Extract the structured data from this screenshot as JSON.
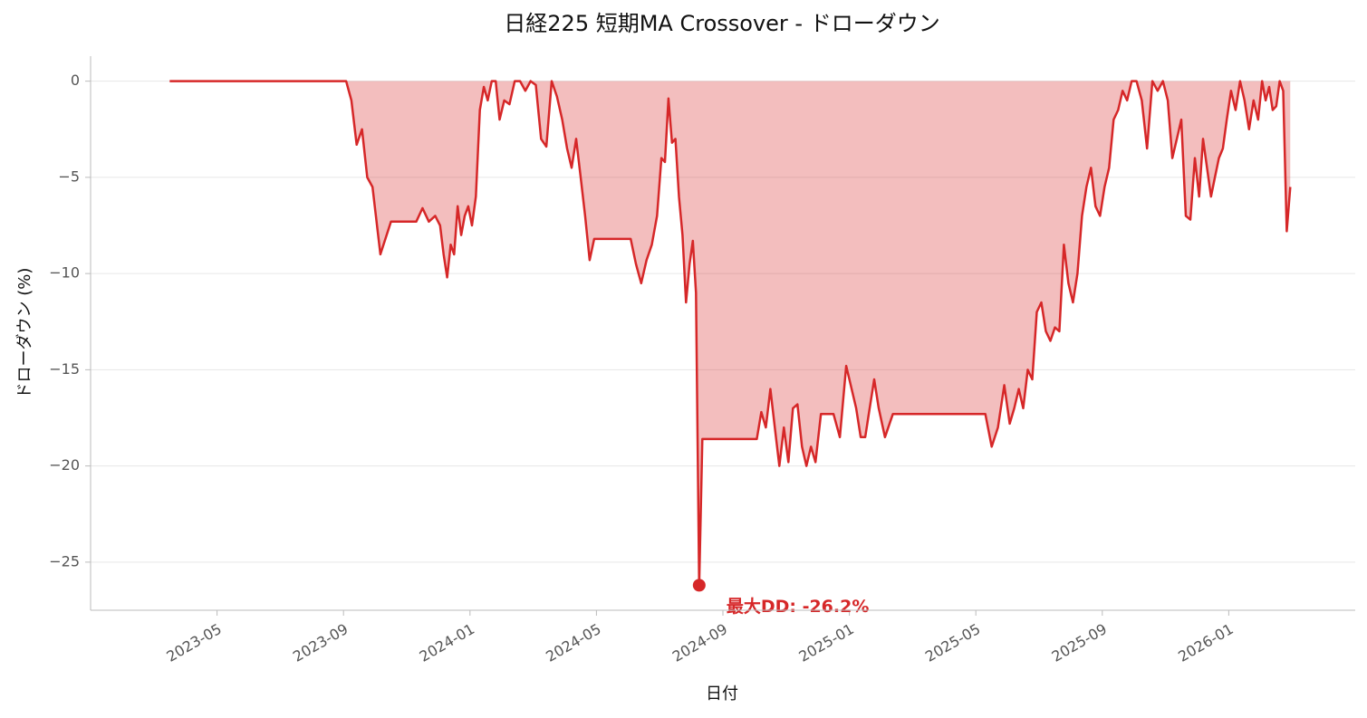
{
  "chart_data": {
    "type": "area-line",
    "title": "日経225 短期MA Crossover - ドローダウン",
    "xlabel": "日付",
    "ylabel": "ドローダウン (%)",
    "annotation": "最大DD: -26.2%",
    "color": "#d62728",
    "x": [
      "2023-03",
      "2023-04",
      "2023-05",
      "2023-06",
      "2023-07",
      "2023-08",
      "2023-09",
      "2023-09",
      "2023-09",
      "2023-09",
      "2023-09",
      "2023-09",
      "2023-10",
      "2023-10",
      "2023-10",
      "2023-11",
      "2023-11",
      "2023-11",
      "2023-11",
      "2023-11",
      "2023-12",
      "2023-12",
      "2023-12",
      "2023-12",
      "2023-12",
      "2023-12",
      "2023-12",
      "2023-12",
      "2023-12",
      "2024-01",
      "2024-01",
      "2024-01",
      "2024-01",
      "2024-01",
      "2024-01",
      "2024-01",
      "2024-01",
      "2024-02",
      "2024-02",
      "2024-02",
      "2024-02",
      "2024-02",
      "2024-02",
      "2024-03",
      "2024-03",
      "2024-03",
      "2024-03",
      "2024-03",
      "2024-03",
      "2024-04",
      "2024-04",
      "2024-04",
      "2024-04",
      "2024-04",
      "2024-04",
      "2024-04",
      "2024-05",
      "2024-05",
      "2024-06",
      "2024-06",
      "2024-06",
      "2024-06",
      "2024-06",
      "2024-06",
      "2024-07",
      "2024-07",
      "2024-07",
      "2024-07",
      "2024-07",
      "2024-07",
      "2024-07",
      "2024-07",
      "2024-07",
      "2024-08",
      "2024-08",
      "2024-08",
      "2024-08",
      "2024-08",
      "2024-08",
      "2024-08",
      "2024-08",
      "2024-08",
      "2024-08",
      "2024-09",
      "2024-09",
      "2024-09",
      "2024-10",
      "2024-10",
      "2024-10",
      "2024-10",
      "2024-10",
      "2024-10",
      "2024-10",
      "2024-11",
      "2024-11",
      "2024-11",
      "2024-11",
      "2024-11",
      "2024-11",
      "2024-11",
      "2024-12",
      "2024-12",
      "2024-12",
      "2024-12",
      "2024-12",
      "2025-01",
      "2025-01",
      "2025-01",
      "2025-01",
      "2025-01",
      "2025-01",
      "2025-01",
      "2025-02",
      "2025-02",
      "2025-02",
      "2025-02",
      "2025-03",
      "2025-03",
      "2025-04",
      "2025-04",
      "2025-05",
      "2025-05",
      "2025-05",
      "2025-05",
      "2025-05",
      "2025-06",
      "2025-06",
      "2025-06",
      "2025-06",
      "2025-06",
      "2025-06",
      "2025-06",
      "2025-07",
      "2025-07",
      "2025-07",
      "2025-07",
      "2025-07",
      "2025-07",
      "2025-07",
      "2025-08",
      "2025-08",
      "2025-08",
      "2025-08",
      "2025-08",
      "2025-08",
      "2025-08",
      "2025-09",
      "2025-09",
      "2025-09",
      "2025-09",
      "2025-09",
      "2025-09",
      "2025-09",
      "2025-10",
      "2025-10",
      "2025-10",
      "2025-10",
      "2025-10",
      "2025-10",
      "2025-11",
      "2025-11",
      "2025-11",
      "2025-11",
      "2025-11",
      "2025-11",
      "2025-11",
      "2025-12",
      "2025-12",
      "2025-12",
      "2025-12",
      "2025-12",
      "2025-12",
      "2025-12",
      "2025-12",
      "2026-01",
      "2026-01",
      "2026-01",
      "2026-01",
      "2026-01",
      "2026-01",
      "2026-01",
      "2026-02",
      "2026-02",
      "2026-02",
      "2026-02",
      "2026-02",
      "2026-02",
      "2026-02",
      "2026-02",
      "2026-02"
    ],
    "values": [
      0,
      0,
      0,
      0,
      0,
      0,
      0,
      -1,
      -3.3,
      -2.5,
      -5,
      -5.5,
      -9,
      -7.3,
      -7.3,
      -7.3,
      -7.3,
      -6.6,
      -7.3,
      -7.0,
      -7.5,
      -9,
      -10.2,
      -8.5,
      -9,
      -6.5,
      -8,
      -7,
      -6.5,
      -7.5,
      -6,
      -1.5,
      -0.3,
      -1,
      0,
      0,
      -2,
      -1,
      -1.2,
      0,
      0,
      -0.5,
      0,
      -0.2,
      -3,
      -3.4,
      0,
      -0.8,
      -2,
      -3.5,
      -4.5,
      -3,
      -5,
      -7,
      -9.3,
      -8.2,
      -8.2,
      -8.2,
      -8.2,
      -9.5,
      -10.5,
      -9.3,
      -8.5,
      -7,
      -4,
      -4.2,
      -0.9,
      -3.2,
      -3,
      -6,
      -8,
      -11.5,
      -9.5,
      -8.3,
      -11,
      -26.2,
      -18.6,
      -18.6,
      -18.6,
      -18.6,
      -18.6,
      -18.6,
      -18.6,
      -18.6,
      -18.6,
      -18.6,
      -18.6,
      -17.2,
      -18,
      -16,
      -18,
      -20,
      -18,
      -19.8,
      -17,
      -16.8,
      -19,
      -20,
      -19,
      -19.8,
      -17.3,
      -17.3,
      -17.3,
      -18.5,
      -14.8,
      -16,
      -17,
      -18.5,
      -18.5,
      -17,
      -15.5,
      -17,
      -18.5,
      -17.3,
      -17.3,
      -17.3,
      -17.3,
      -17.3,
      -17.3,
      -17.3,
      -17.3,
      -17.3,
      -19,
      -18,
      -15.8,
      -17.8,
      -17,
      -16,
      -17,
      -15,
      -15.5,
      -12,
      -11.5,
      -13,
      -13.5,
      -12.8,
      -13,
      -8.5,
      -10.5,
      -11.5,
      -10,
      -7,
      -5.5,
      -4.5,
      -6.5,
      -7,
      -5.5,
      -4.5,
      -2,
      -1.5,
      -0.5,
      -1,
      0,
      0,
      -1,
      -3.5,
      0,
      -0.5,
      0,
      -1,
      -4,
      -3,
      -2,
      -7,
      -7.2,
      -4,
      -6,
      -3,
      -4.5,
      -6,
      -5,
      -4,
      -3.5,
      -2,
      -0.5,
      -1.5,
      0,
      -1,
      -2.5,
      -1,
      -2,
      0,
      -1,
      -0.3,
      -1.5,
      -1.3,
      0,
      -0.5,
      -7.8,
      -5.5
    ],
    "xlim": [
      "2023-01",
      "2026-05"
    ],
    "xticks": [
      "2023-05",
      "2023-09",
      "2024-01",
      "2024-05",
      "2024-09",
      "2025-01",
      "2025-05",
      "2025-09",
      "2026-01"
    ],
    "ylim": [
      -27.5,
      1.3
    ],
    "yticks": [
      {
        "value": -25,
        "label": "−25"
      },
      {
        "value": -20,
        "label": "−20"
      },
      {
        "value": -15,
        "label": "−15"
      },
      {
        "value": -10,
        "label": "−10"
      },
      {
        "value": -5,
        "label": "−5"
      },
      0
    ],
    "grid": true
  }
}
